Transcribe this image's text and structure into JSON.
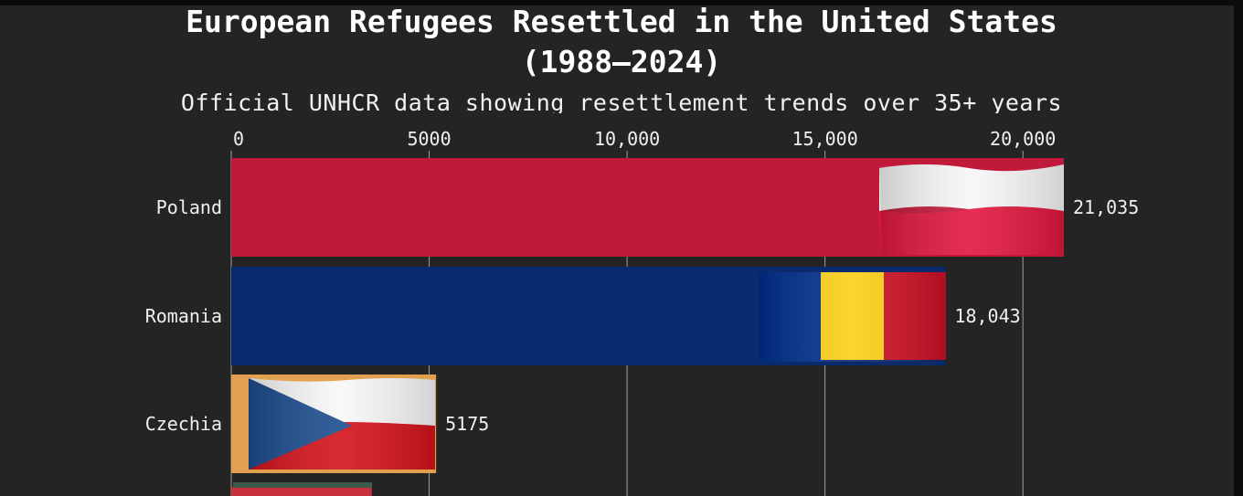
{
  "chart_data": {
    "type": "bar",
    "orientation": "horizontal",
    "title_line1": "European Refugees Resettled in the United States",
    "title_line2": "(1988–2024)",
    "subtitle": "Official UNHCR data showing resettlement trends over 35+ years",
    "xlim": [
      0,
      21035
    ],
    "ticks": [
      {
        "value": 0,
        "label": "0"
      },
      {
        "value": 5000,
        "label": "5000"
      },
      {
        "value": 10000,
        "label": "10,000"
      },
      {
        "value": 15000,
        "label": "15,000"
      },
      {
        "value": 20000,
        "label": "20,000"
      }
    ],
    "categories": [
      "Poland",
      "Romania",
      "Czechia"
    ],
    "values": [
      21035,
      18043,
      5175
    ],
    "value_labels": [
      "21,035",
      "18,043",
      "5175"
    ],
    "bar_colors": [
      "#c0193a",
      "#0a2a6e",
      "#e0a050"
    ],
    "partial_next_bar": {
      "value": 3550,
      "color": "#c8303c"
    },
    "grid": true,
    "legend": "none",
    "background": "#242424"
  }
}
